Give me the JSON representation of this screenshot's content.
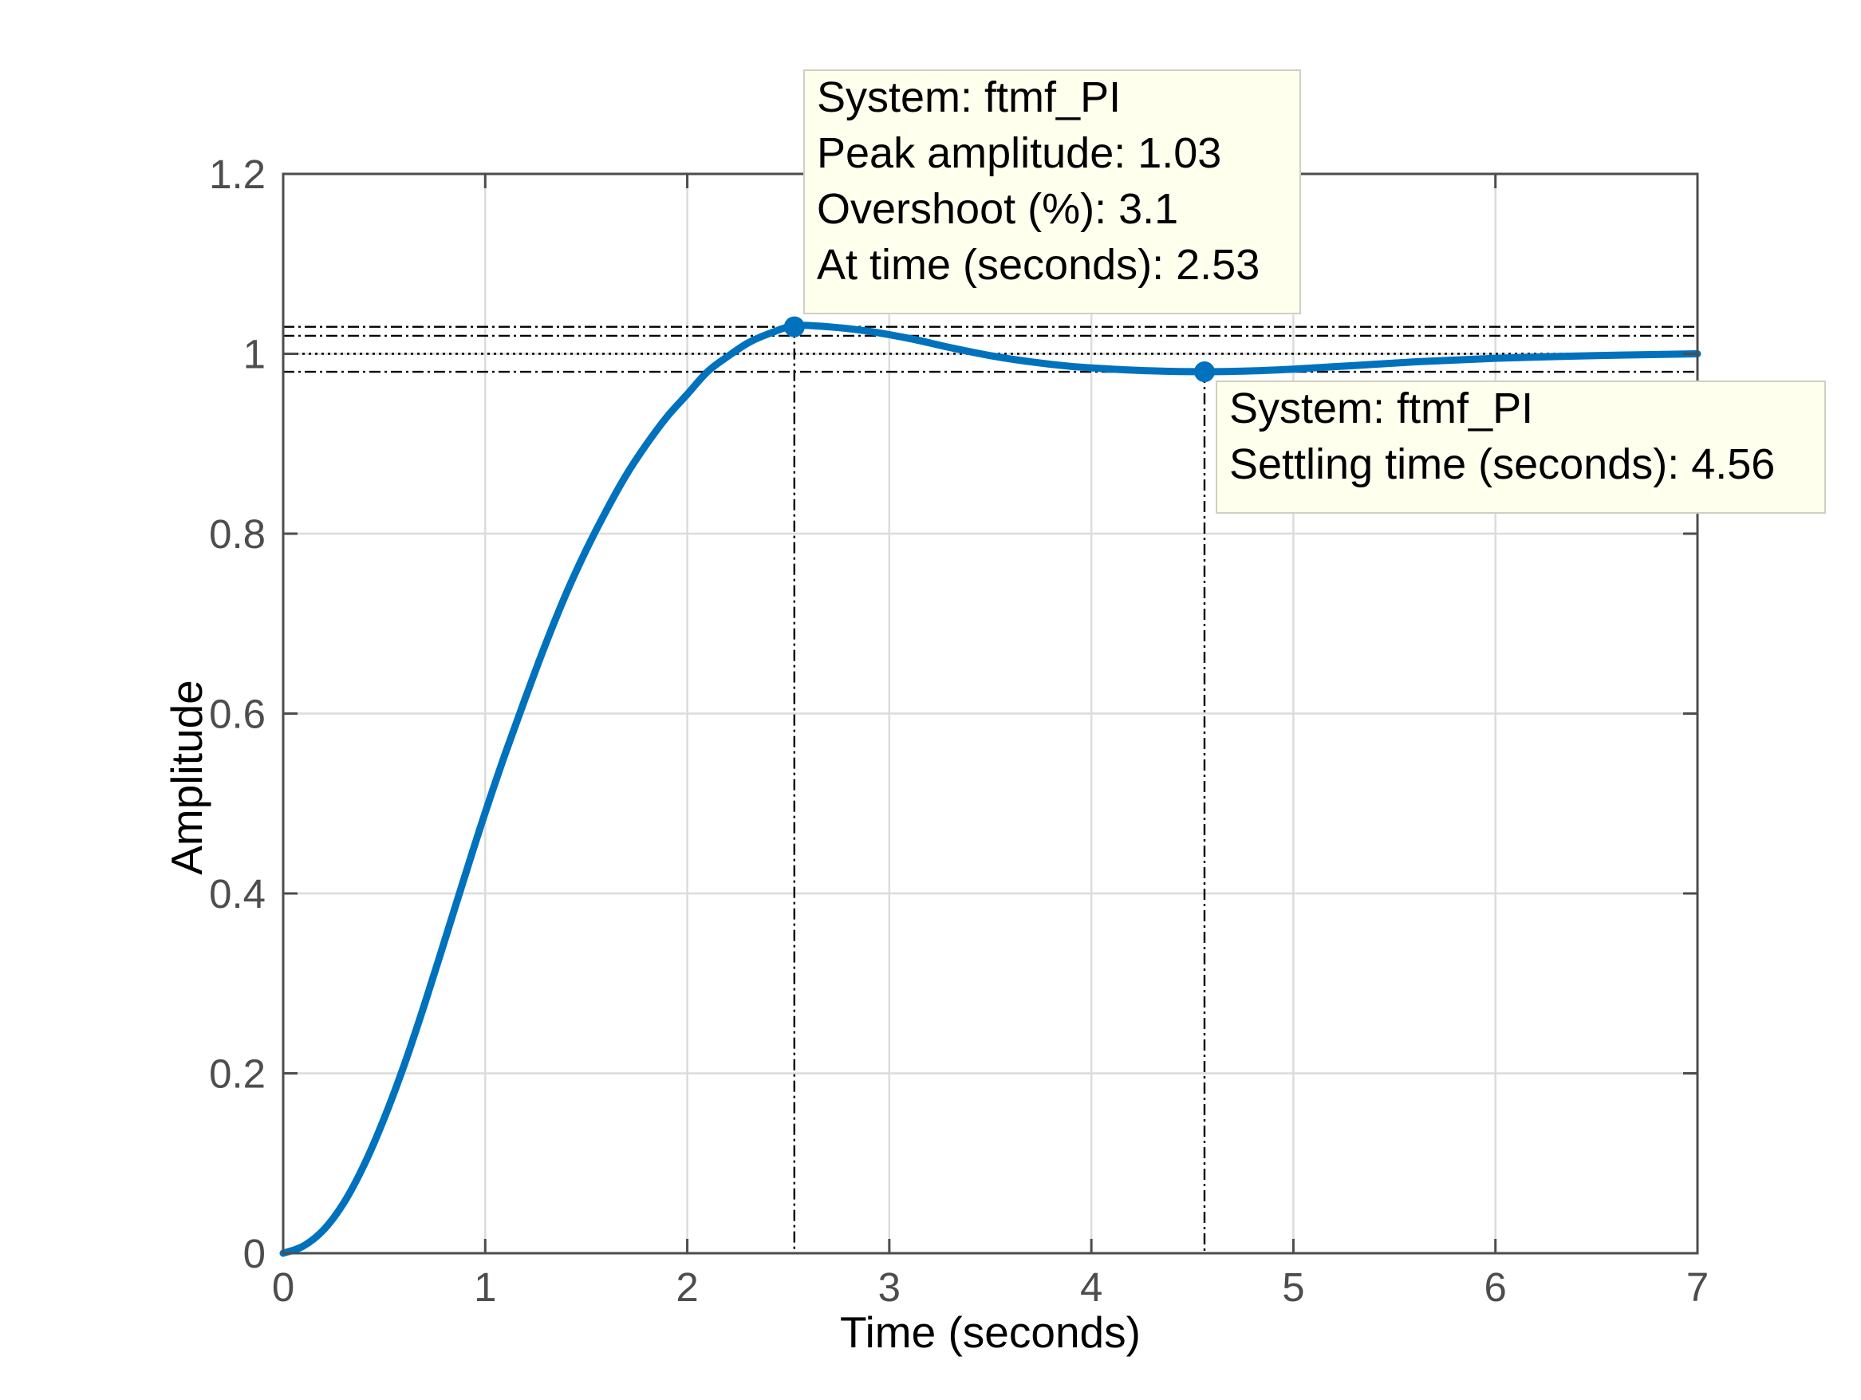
{
  "colors": {
    "series": "#0072bd",
    "axes": "#4d4d4d",
    "grid": "#dcdcdc",
    "datatip_bg": "#ffffee",
    "datatip_border": "#d0d0c0"
  },
  "chart_data": {
    "type": "line",
    "title": "",
    "xlabel": "Time (seconds)",
    "ylabel": "Amplitude",
    "xlim": [
      0,
      7
    ],
    "ylim": [
      0,
      1.2
    ],
    "xticks": [
      0,
      1,
      2,
      3,
      4,
      5,
      6,
      7
    ],
    "xtick_labels": [
      "0",
      "1",
      "2",
      "3",
      "4",
      "5",
      "6",
      "7"
    ],
    "yticks": [
      0,
      0.2,
      0.4,
      0.6,
      0.8,
      1.0,
      1.2
    ],
    "ytick_labels": [
      "0",
      "0.2",
      "0.4",
      "0.6",
      "0.8",
      "1",
      "1.2"
    ],
    "grid": true,
    "series": [
      {
        "x": [
          0,
          0.1,
          0.2,
          0.3,
          0.4,
          0.5,
          0.6,
          0.7,
          0.8,
          0.9,
          1.0,
          1.1,
          1.2,
          1.3,
          1.4,
          1.5,
          1.6,
          1.7,
          1.8,
          1.9,
          2.0,
          2.1,
          2.2,
          2.3,
          2.4,
          2.53,
          2.7,
          2.9,
          3.1,
          3.3,
          3.5,
          3.7,
          3.9,
          4.1,
          4.3,
          4.56,
          4.8,
          5.0,
          5.3,
          5.6,
          6.0,
          6.5,
          7.0
        ],
        "y": [
          0,
          0.008,
          0.026,
          0.056,
          0.098,
          0.15,
          0.21,
          0.277,
          0.348,
          0.42,
          0.49,
          0.556,
          0.618,
          0.678,
          0.733,
          0.782,
          0.826,
          0.866,
          0.9,
          0.93,
          0.955,
          0.98,
          0.997,
          1.012,
          1.022,
          1.031,
          1.03,
          1.025,
          1.017,
          1.007,
          0.998,
          0.991,
          0.986,
          0.983,
          0.981,
          0.98,
          0.981,
          0.983,
          0.987,
          0.991,
          0.995,
          0.998,
          1.0
        ]
      }
    ],
    "reference_lines": {
      "horizontal": [
        {
          "y": 1.03,
          "style": "dash-dot"
        },
        {
          "y": 1.02,
          "style": "dash-dot"
        },
        {
          "y": 1.0,
          "style": "dotted"
        },
        {
          "y": 0.98,
          "style": "dash-dot"
        }
      ],
      "vertical": [
        {
          "x": 2.53,
          "y": 1.03,
          "style": "dash-dot"
        },
        {
          "x": 4.56,
          "y": 0.98,
          "style": "dash-dot"
        }
      ]
    },
    "datatips": [
      {
        "x": 2.53,
        "y": 1.03,
        "lines": [
          "System: ftmf_PI",
          "Peak amplitude: 1.03",
          "Overshoot (%): 3.1",
          "At time (seconds): 2.53"
        ]
      },
      {
        "x": 4.56,
        "y": 0.98,
        "lines": [
          "System: ftmf_PI",
          "Settling time (seconds): 4.56"
        ]
      }
    ]
  }
}
